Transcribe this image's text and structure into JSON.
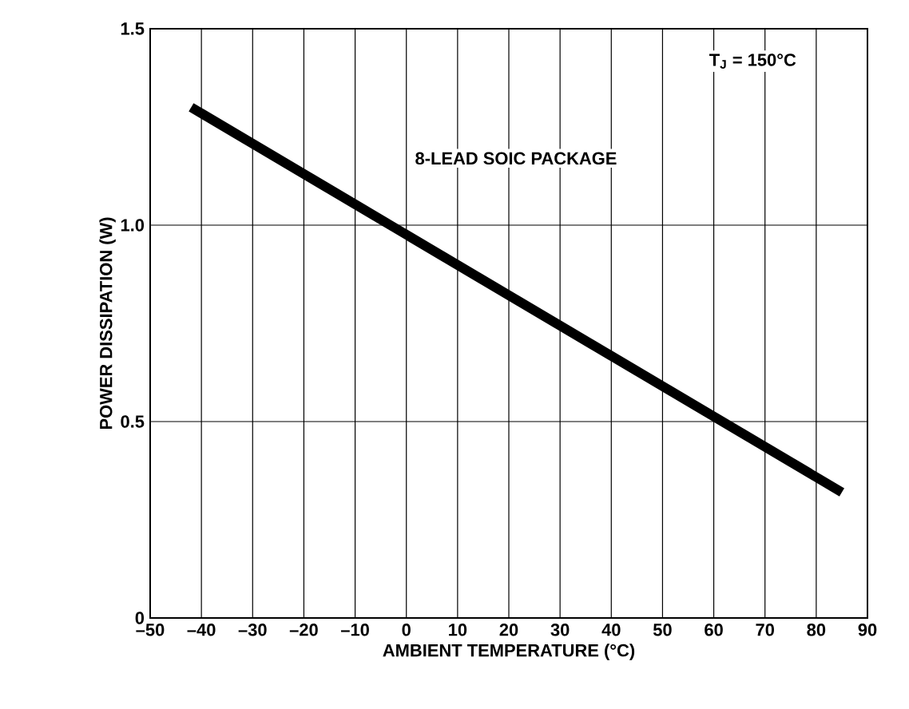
{
  "chart_data": {
    "type": "line",
    "xlabel": "AMBIENT TEMPERATURE (°C)",
    "ylabel": "POWER DISSIPATION (W)",
    "annotations": [
      "T$_{J}$ = 150°C",
      "8-LEAD SOIC PACKAGE"
    ],
    "x": [
      -42,
      85
    ],
    "series": [
      {
        "color": "#000000",
        "values": [
          1.3,
          0.32
        ]
      }
    ],
    "xlim": [
      -50,
      90
    ],
    "xticks": [
      {
        "value": -50,
        "label": "–50"
      },
      {
        "value": -40,
        "label": "–40"
      },
      {
        "value": -30,
        "label": "–30"
      },
      {
        "value": -20,
        "label": "–20"
      },
      {
        "value": -10,
        "label": "–10"
      },
      0,
      10,
      20,
      30,
      40,
      50,
      60,
      70,
      80,
      90
    ],
    "ylim": [
      0,
      1.5
    ],
    "yticks": [
      0,
      0.5,
      {
        "value": 1.0,
        "label": "1.0"
      },
      1.5
    ],
    "grid": true,
    "line_style": "solid"
  }
}
